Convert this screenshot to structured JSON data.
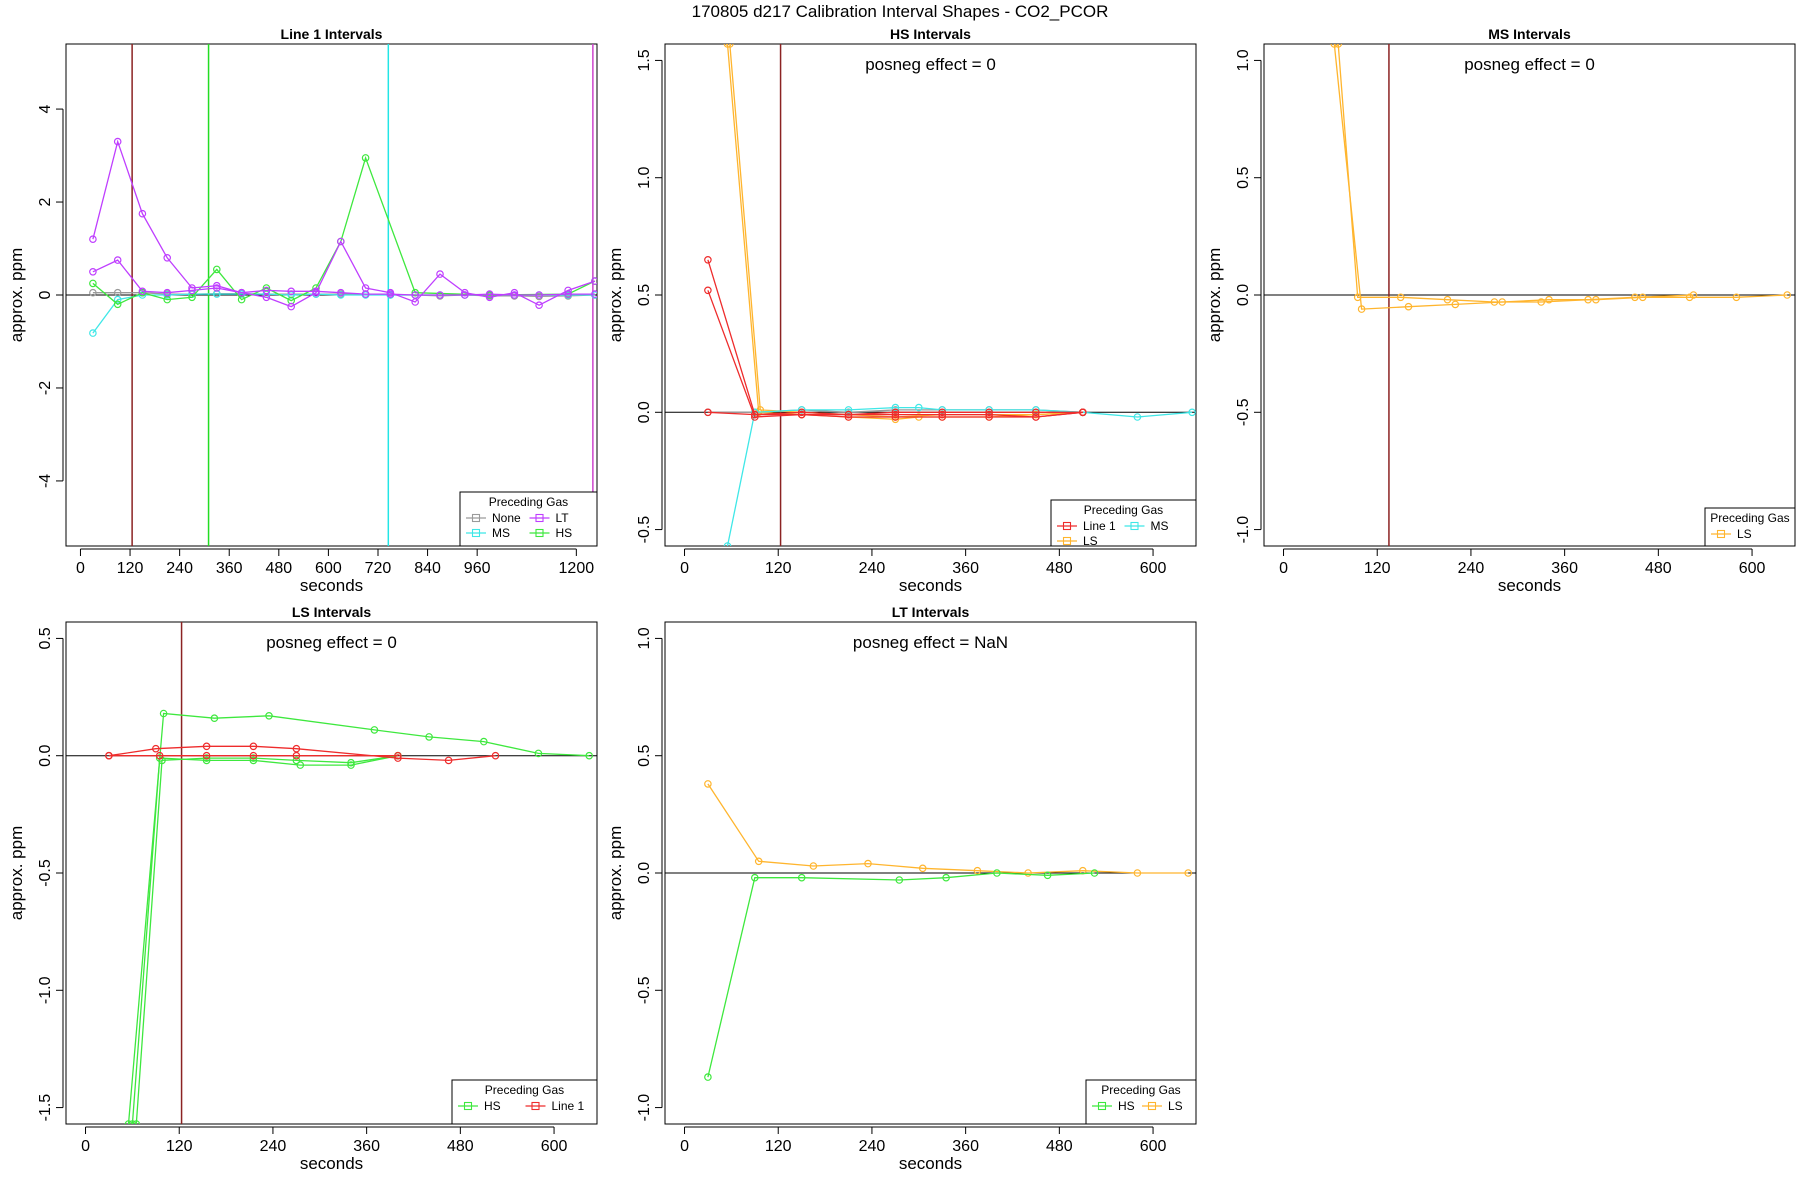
{
  "title": "170805  d217   Calibration Interval Shapes - CO2_PCOR",
  "chart_data": [
    {
      "type": "line",
      "title": "Line 1 Intervals",
      "xlabel": "seconds",
      "ylabel": "approx. ppm",
      "xlim": [
        -35,
        1250
      ],
      "ylim": [
        -5.4,
        5.4
      ],
      "xticks": [
        0,
        120,
        240,
        360,
        480,
        600,
        720,
        840,
        960,
        1200
      ],
      "yticks": [
        -4,
        -2,
        0,
        2,
        4
      ],
      "annotation": "",
      "vlines": [
        {
          "x": 125,
          "color": "#8b2323"
        },
        {
          "x": 310,
          "color": "#22dd22"
        },
        {
          "x": 745,
          "color": "#22e5e5"
        },
        {
          "x": 1240,
          "color": "#cc44cc"
        }
      ],
      "legend": {
        "title": "Preceding Gas",
        "columns": 2,
        "entries": [
          {
            "label": "None",
            "color": "#9a9a9a"
          },
          {
            "label": "LT",
            "color": "#bf3eff"
          },
          {
            "label": "MS",
            "color": "#3fe7e7"
          },
          {
            "label": "HS",
            "color": "#3ee83e"
          }
        ]
      },
      "series": [
        {
          "color": "#9a9a9a",
          "x": [
            30,
            90,
            150,
            210,
            270,
            330,
            390,
            450,
            510,
            570,
            630,
            690,
            750,
            810,
            870,
            930,
            990,
            1050,
            1110,
            1180,
            1245
          ],
          "y": [
            0.05,
            0.05,
            0.05,
            0.02,
            0.02,
            0.03,
            0.03,
            0.02,
            0.02,
            0.02,
            0.02,
            0.02,
            0.0,
            0.0,
            -0.02,
            0.0,
            -0.02,
            -0.02,
            -0.03,
            -0.02,
            0.0
          ]
        },
        {
          "color": "#3fe7e7",
          "x": [
            30,
            90,
            150,
            210,
            270,
            330,
            390,
            450,
            510,
            570,
            630,
            690,
            750,
            810,
            870,
            930,
            990,
            1050,
            1110,
            1180,
            1245
          ],
          "y": [
            -0.82,
            -0.1,
            0.0,
            0.0,
            0.02,
            0.02,
            0.02,
            0.02,
            0.0,
            0.02,
            0.0,
            0.0,
            0.0,
            0.0,
            0.0,
            0.0,
            0.0,
            0.0,
            0.0,
            0.0,
            0.0
          ]
        },
        {
          "color": "#3ee83e",
          "x": [
            30,
            90,
            150,
            210,
            270,
            330,
            390,
            450,
            510,
            570,
            630,
            690,
            810,
            990,
            1180,
            1245
          ],
          "y": [
            0.25,
            -0.2,
            0.05,
            -0.1,
            -0.05,
            0.55,
            -0.1,
            0.15,
            -0.12,
            0.15,
            1.15,
            2.95,
            0.05,
            0.0,
            0.02,
            0.3
          ]
        },
        {
          "color": "#bf3eff",
          "x": [
            30,
            90,
            150,
            210,
            270,
            330,
            390,
            450,
            510,
            570,
            630,
            690,
            750,
            810,
            870,
            930,
            990,
            1050,
            1110,
            1180,
            1245
          ],
          "y": [
            1.2,
            3.3,
            1.75,
            0.8,
            0.15,
            0.2,
            0.05,
            -0.05,
            -0.25,
            0.05,
            1.15,
            0.15,
            0.05,
            -0.15,
            0.45,
            0.05,
            -0.05,
            0.05,
            -0.22,
            0.1,
            0.3
          ]
        },
        {
          "color": "#bf3eff",
          "x": [
            30,
            90,
            150,
            210,
            270,
            330,
            390,
            450,
            510,
            570,
            630,
            690,
            750,
            810,
            870,
            930,
            990,
            1050,
            1110,
            1180,
            1245
          ],
          "y": [
            0.5,
            0.75,
            0.08,
            0.05,
            0.1,
            0.15,
            0.05,
            0.1,
            0.08,
            0.08,
            0.05,
            0.02,
            0.02,
            0.0,
            0.0,
            0.0,
            0.02,
            0.0,
            0.0,
            0.02,
            0.02
          ]
        }
      ]
    },
    {
      "type": "line",
      "title": "HS Intervals",
      "xlabel": "seconds",
      "ylabel": "approx. ppm",
      "xlim": [
        -25,
        655
      ],
      "ylim": [
        -0.57,
        1.57
      ],
      "xticks": [
        0,
        120,
        240,
        360,
        480,
        600
      ],
      "yticks": [
        -0.5,
        0.0,
        0.5,
        1.0,
        1.5
      ],
      "annotation": "posneg effect = 0",
      "vlines": [
        {
          "x": 123,
          "color": "#8b2323"
        }
      ],
      "legend": {
        "title": "Preceding Gas",
        "columns": 2,
        "entries": [
          {
            "label": "Line 1",
            "color": "#ee2c2c"
          },
          {
            "label": "MS",
            "color": "#3fe7e7"
          },
          {
            "label": "LS",
            "color": "#ffb52e"
          }
        ]
      },
      "series": [
        {
          "color": "#9a9a9a",
          "x": [
            30,
            90,
            150,
            210,
            270,
            330,
            390,
            450,
            510
          ],
          "y": [
            0.0,
            0.0,
            0.01,
            0.0,
            0.01,
            0.01,
            0.01,
            0.01,
            0.0
          ]
        },
        {
          "color": "#ffb52e",
          "x": [
            55,
            95,
            150,
            210,
            270,
            300,
            330,
            390,
            450,
            510
          ],
          "y": [
            1.57,
            0.0,
            -0.01,
            -0.02,
            -0.03,
            -0.02,
            -0.02,
            -0.02,
            -0.01,
            0.0
          ]
        },
        {
          "color": "#ffb52e",
          "x": [
            58,
            97,
            150,
            210,
            270,
            330,
            390,
            450,
            510
          ],
          "y": [
            1.57,
            0.01,
            0.0,
            -0.01,
            -0.02,
            -0.01,
            -0.01,
            -0.01,
            0.0
          ]
        },
        {
          "color": "#3fe7e7",
          "x": [
            55,
            90,
            150,
            210,
            270,
            300,
            330,
            390,
            450,
            510,
            580,
            650
          ],
          "y": [
            -0.57,
            0.0,
            0.01,
            0.01,
            0.02,
            0.02,
            0.01,
            0.01,
            0.01,
            0.0,
            -0.02,
            0.0
          ]
        },
        {
          "color": "#ee2c2c",
          "x": [
            30,
            90,
            150,
            210,
            270,
            330,
            390,
            450,
            510
          ],
          "y": [
            0.65,
            -0.01,
            -0.01,
            -0.01,
            -0.01,
            -0.01,
            -0.01,
            -0.02,
            0.0
          ]
        },
        {
          "color": "#ee2c2c",
          "x": [
            30,
            90,
            150,
            210,
            270,
            330,
            390,
            450,
            510
          ],
          "y": [
            0.52,
            -0.02,
            -0.01,
            -0.02,
            -0.02,
            -0.02,
            -0.02,
            -0.02,
            0.0
          ]
        },
        {
          "color": "#ee2c2c",
          "x": [
            30,
            90,
            150,
            210,
            270,
            330,
            390,
            450,
            510
          ],
          "y": [
            0.0,
            -0.01,
            0.0,
            -0.01,
            0.0,
            0.0,
            0.0,
            0.0,
            0.0
          ]
        }
      ]
    },
    {
      "type": "line",
      "title": "MS Intervals",
      "xlabel": "seconds",
      "ylabel": "approx. ppm",
      "xlim": [
        -25,
        655
      ],
      "ylim": [
        -1.07,
        1.07
      ],
      "xticks": [
        0,
        120,
        240,
        360,
        480,
        600
      ],
      "yticks": [
        -1.0,
        -0.5,
        0.0,
        0.5,
        1.0
      ],
      "annotation": "posneg effect = 0",
      "vlines": [
        {
          "x": 135,
          "color": "#8b2323"
        }
      ],
      "legend": {
        "title": "Preceding Gas",
        "columns": 1,
        "entries": [
          {
            "label": "LS",
            "color": "#ffb52e"
          }
        ]
      },
      "series": [
        {
          "color": "#ffb52e",
          "x": [
            65,
            100,
            160,
            220,
            280,
            340,
            400,
            460,
            520,
            580,
            645
          ],
          "y": [
            1.07,
            -0.06,
            -0.05,
            -0.04,
            -0.03,
            -0.02,
            -0.02,
            -0.01,
            -0.01,
            -0.01,
            0.0
          ]
        },
        {
          "color": "#ffb52e",
          "x": [
            70,
            95,
            150,
            210,
            270,
            330,
            390,
            450,
            525
          ],
          "y": [
            1.07,
            -0.01,
            -0.01,
            -0.02,
            -0.03,
            -0.03,
            -0.02,
            -0.01,
            0.0
          ]
        }
      ]
    },
    {
      "type": "line",
      "title": "LS Intervals",
      "xlabel": "seconds",
      "ylabel": "approx. ppm",
      "xlim": [
        -25,
        655
      ],
      "ylim": [
        -1.57,
        0.57
      ],
      "xticks": [
        0,
        120,
        240,
        360,
        480,
        600
      ],
      "yticks": [
        -1.5,
        -1.0,
        -0.5,
        0.0,
        0.5
      ],
      "annotation": "posneg effect = 0",
      "vlines": [
        {
          "x": 123,
          "color": "#8b2323"
        }
      ],
      "legend": {
        "title": "Preceding Gas",
        "columns": 2,
        "entries": [
          {
            "label": "HS",
            "color": "#3ee83e"
          },
          {
            "label": "Line 1",
            "color": "#ee2c2c"
          }
        ]
      },
      "series": [
        {
          "color": "#3ee83e",
          "x": [
            55,
            100,
            165,
            235,
            370,
            440,
            510,
            580,
            645
          ],
          "y": [
            -1.57,
            0.18,
            0.16,
            0.17,
            0.11,
            0.08,
            0.06,
            0.01,
            0.0
          ]
        },
        {
          "color": "#3ee83e",
          "x": [
            60,
            95,
            155,
            215,
            275,
            340,
            400
          ],
          "y": [
            -1.57,
            -0.01,
            -0.02,
            -0.02,
            -0.04,
            -0.04,
            0.0
          ]
        },
        {
          "color": "#3ee83e",
          "x": [
            65,
            98,
            155,
            215,
            270,
            340,
            400
          ],
          "y": [
            -1.57,
            -0.02,
            -0.01,
            -0.01,
            -0.02,
            -0.03,
            0.0
          ]
        },
        {
          "color": "#ee2c2c",
          "x": [
            30,
            90,
            155,
            215,
            270,
            400,
            465,
            525
          ],
          "y": [
            0.0,
            0.03,
            0.04,
            0.04,
            0.03,
            -0.01,
            -0.02,
            0.0
          ]
        },
        {
          "color": "#ee2c2c",
          "x": [
            30,
            95,
            155,
            215,
            270,
            400
          ],
          "y": [
            0.0,
            0.0,
            0.0,
            0.0,
            0.0,
            0.0
          ]
        }
      ]
    },
    {
      "type": "line",
      "title": "LT Intervals",
      "xlabel": "seconds",
      "ylabel": "approx. ppm",
      "xlim": [
        -25,
        655
      ],
      "ylim": [
        -1.07,
        1.07
      ],
      "xticks": [
        0,
        120,
        240,
        360,
        480,
        600
      ],
      "yticks": [
        -1.0,
        -0.5,
        0.0,
        0.5,
        1.0
      ],
      "annotation": "posneg effect = NaN",
      "vlines": [],
      "legend": {
        "title": "Preceding Gas",
        "columns": 2,
        "entries": [
          {
            "label": "HS",
            "color": "#3ee83e"
          },
          {
            "label": "LS",
            "color": "#ffb52e"
          }
        ]
      },
      "series": [
        {
          "color": "#ffb52e",
          "x": [
            30,
            95,
            165,
            235,
            305,
            375,
            440,
            510,
            580,
            645
          ],
          "y": [
            0.38,
            0.05,
            0.03,
            0.04,
            0.02,
            0.01,
            0.0,
            0.01,
            0.0,
            0.0
          ]
        },
        {
          "color": "#3ee83e",
          "x": [
            30,
            90,
            150,
            275,
            335,
            400,
            465,
            525
          ],
          "y": [
            -0.87,
            -0.02,
            -0.02,
            -0.03,
            -0.02,
            0.0,
            -0.01,
            0.0
          ]
        }
      ]
    }
  ]
}
